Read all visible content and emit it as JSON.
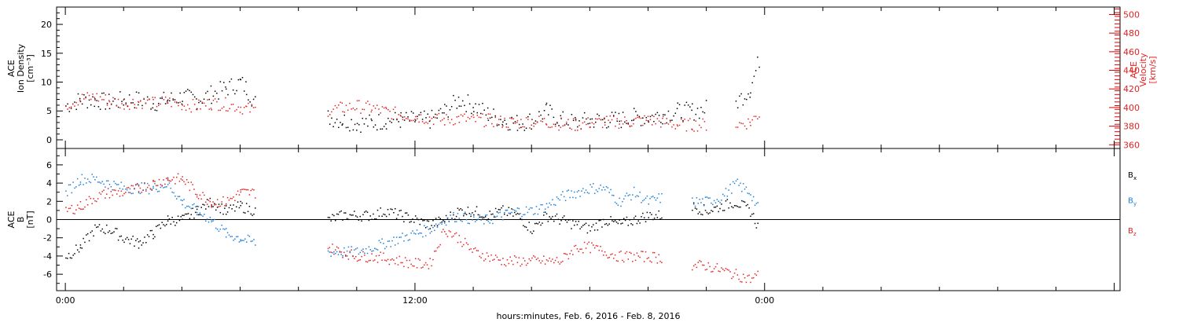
{
  "colors": {
    "black": "#000000",
    "red": "#e32222",
    "blue": "#1e7fd8"
  },
  "chart_data": [
    {
      "type": "scatter",
      "panel": "top",
      "ylabel_lines": [
        "ACE",
        "Ion Density",
        "[cm⁻³]"
      ],
      "y2label_lines": [
        "ACE",
        "Velocity",
        "[km/s]"
      ],
      "ylim": [
        -1.5,
        23
      ],
      "y2lim": [
        356,
        508
      ],
      "y_ticks": [
        "0",
        "5",
        "10",
        "15",
        "20"
      ],
      "y_tick_values": [
        0,
        5,
        10,
        15,
        20
      ],
      "y2_ticks": [
        "360",
        "380",
        "400",
        "420",
        "440",
        "460",
        "480",
        "500"
      ],
      "y2_tick_values": [
        360,
        380,
        400,
        420,
        440,
        460,
        480,
        500
      ],
      "series": [
        {
          "color": "black",
          "axis": "left",
          "x": [
            0,
            0.5,
            1,
            1.5,
            2,
            2.5,
            3,
            3.5,
            4,
            4.5,
            5,
            5.5,
            6,
            6.2,
            6.5,
            7,
            7.5,
            8,
            8.5,
            9,
            9.5,
            10,
            10.5,
            11,
            11.5,
            12,
            12.5,
            13,
            13.5,
            14,
            14.5,
            15,
            15.5,
            16,
            16.5,
            17,
            17.5,
            18,
            18.5,
            19,
            19.5,
            20,
            20.5,
            21,
            21.5,
            22,
            22.5,
            23,
            23.5,
            23.8
          ],
          "y": [
            6,
            7,
            7,
            6.5,
            7,
            7,
            6.5,
            7,
            7.5,
            7,
            8,
            9,
            10,
            9,
            6.5,
            null,
            null,
            null,
            null,
            4,
            3.5,
            3,
            3,
            3.5,
            3.5,
            3.5,
            3.5,
            5,
            7,
            6,
            4.5,
            3.5,
            3,
            3.5,
            5,
            3.5,
            3,
            3.5,
            3.5,
            3.5,
            4,
            4,
            4.5,
            5,
            5,
            5.5,
            null,
            6.5,
            9,
            14
          ]
        },
        {
          "color": "red",
          "axis": "right",
          "x": [
            0,
            0.5,
            1,
            1.5,
            2,
            2.5,
            3,
            3.5,
            4,
            4.5,
            5,
            5.5,
            6,
            6.2,
            6.5,
            7,
            7.5,
            8,
            8.5,
            9,
            9.5,
            10,
            10.5,
            11,
            11.5,
            12,
            12.5,
            13,
            13.5,
            14,
            14.5,
            15,
            15.5,
            16,
            16.5,
            17,
            17.5,
            18,
            18.5,
            19,
            19.5,
            20,
            20.5,
            21,
            21.5,
            22,
            22.5,
            23,
            23.5,
            23.8
          ],
          "y": [
            404,
            410,
            412,
            408,
            405,
            407,
            405,
            407,
            404,
            402,
            405,
            404,
            401,
            399,
            398,
            null,
            null,
            null,
            null,
            398,
            400,
            402,
            400,
            396,
            393,
            391,
            389,
            387,
            389,
            387,
            387,
            385,
            384,
            386,
            385,
            383,
            382,
            384,
            385,
            385,
            386,
            387,
            385,
            382,
            382,
            382,
            null,
            382,
            385,
            394
          ]
        }
      ]
    },
    {
      "type": "scatter",
      "panel": "bottom",
      "ylabel_lines": [
        "ACE",
        "B",
        "[nT]"
      ],
      "ylim": [
        -7.8,
        7.8
      ],
      "y_ticks": [
        "-6",
        "-4",
        "-2",
        "0",
        "2",
        "4",
        "6"
      ],
      "y_tick_values": [
        -6,
        -4,
        -2,
        0,
        2,
        4,
        6
      ],
      "legend_placement": "right",
      "x_ticks": [
        "0:00",
        "12:00",
        "0:00"
      ],
      "x_tick_values": [
        0,
        12,
        24
      ],
      "xlabel": "hours:minutes, Feb.  6, 2016 - Feb.  8, 2016",
      "xlim": [
        -0.3,
        36.2
      ],
      "series": [
        {
          "name": "Bx",
          "label_main": "B",
          "label_sub": "x",
          "color": "black",
          "x": [
            0,
            0.5,
            1,
            1.5,
            2,
            2.5,
            3,
            3.5,
            4,
            4.5,
            5,
            5.5,
            6,
            6.5,
            7,
            7.5,
            8,
            8.5,
            9,
            9.5,
            10,
            10.5,
            11,
            11.5,
            12,
            12.5,
            13,
            13.5,
            14,
            14.5,
            15,
            15.5,
            16,
            16.5,
            17,
            17.5,
            18,
            18.5,
            19,
            19.5,
            20,
            20.5,
            21,
            21.5,
            22,
            22.5,
            23,
            23.5,
            23.8
          ],
          "y": [
            -4,
            -3,
            -1,
            -1,
            -2,
            -2.5,
            -1.5,
            0,
            0,
            1,
            2,
            1,
            1.5,
            1,
            null,
            null,
            null,
            null,
            0,
            0.5,
            0.5,
            0.5,
            1,
            0.5,
            0,
            -0.5,
            0,
            1,
            1,
            0.5,
            1,
            0.5,
            -1,
            0.5,
            0,
            -0.5,
            -1,
            0,
            -0.5,
            0,
            0.5,
            0.5,
            null,
            1.5,
            1,
            1.5,
            2,
            1,
            -1
          ]
        },
        {
          "name": "By",
          "label_main": "B",
          "label_sub": "y",
          "color": "blue",
          "x": [
            0,
            0.5,
            1,
            1.5,
            2,
            2.5,
            3,
            3.5,
            4,
            4.5,
            5,
            5.5,
            6,
            6.5,
            7,
            7.5,
            8,
            8.5,
            9,
            9.5,
            10,
            10.5,
            11,
            11.5,
            12,
            12.5,
            13,
            13.5,
            14,
            14.5,
            15,
            15.5,
            16,
            16.5,
            17,
            17.5,
            18,
            18.5,
            19,
            19.5,
            20,
            20.5,
            21,
            21.5,
            22,
            22.5,
            23,
            23.5,
            23.8
          ],
          "y": [
            3,
            4.5,
            4.5,
            4,
            3.5,
            3.5,
            3.5,
            4,
            2,
            1,
            0,
            -1.5,
            -2,
            -2.5,
            null,
            null,
            null,
            null,
            -3.5,
            -3.5,
            -3.5,
            -3,
            -2.5,
            -2,
            -1.5,
            -1,
            0,
            0.5,
            0,
            0,
            0.5,
            1,
            1,
            1.5,
            2.5,
            3,
            3.5,
            3.5,
            2,
            3,
            2,
            2.5,
            null,
            2,
            2,
            2.5,
            4,
            3,
            1
          ]
        },
        {
          "name": "Bz",
          "label_main": "B",
          "label_sub": "z",
          "color": "red",
          "x": [
            0,
            0.5,
            1,
            1.5,
            2,
            2.5,
            3,
            3.5,
            4,
            4.5,
            5,
            5.5,
            6,
            6.5,
            7,
            7.5,
            8,
            8.5,
            9,
            9.5,
            10,
            10.5,
            11,
            11.5,
            12,
            12.5,
            13,
            13.5,
            14,
            14.5,
            15,
            15.5,
            16,
            16.5,
            17,
            17.5,
            18,
            18.5,
            19,
            19.5,
            20,
            20.5,
            21,
            21.5,
            22,
            22.5,
            23,
            23.5,
            23.8
          ],
          "y": [
            1,
            1.5,
            2.5,
            3,
            3,
            3.5,
            4,
            4.5,
            4.5,
            3,
            2,
            2,
            3,
            3,
            null,
            null,
            null,
            null,
            -3,
            -3.5,
            -4,
            -4,
            -4.2,
            -4.5,
            -4.8,
            -4.8,
            -1,
            -2,
            -3.5,
            -4,
            -4.5,
            -4.5,
            -4.5,
            -4.5,
            -4.5,
            -3,
            -3,
            -3.5,
            -4,
            -4,
            -4,
            -4.2,
            null,
            -5,
            -5,
            -5.5,
            -6,
            -6.5,
            -6
          ]
        }
      ]
    }
  ]
}
